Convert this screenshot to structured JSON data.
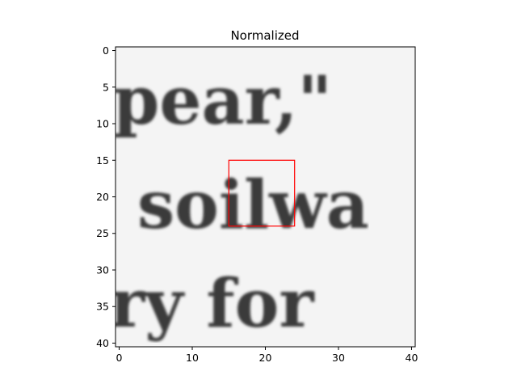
{
  "chart_data": {
    "type": "heatmap",
    "title": "Normalized",
    "xlabel": "",
    "ylabel": "",
    "xlim": [
      -0.5,
      40.5
    ],
    "ylim": [
      40.5,
      -0.5
    ],
    "x_ticks": [
      0,
      10,
      20,
      30,
      40
    ],
    "y_ticks": [
      0,
      5,
      10,
      15,
      20,
      25,
      30,
      35,
      40
    ],
    "colormap": "gray_r",
    "image_text_lines": [
      {
        "text": "pear,\"",
        "row_center": 7
      },
      {
        "text": "soilwa",
        "row_center": 21
      },
      {
        "text": "ry for",
        "row_center": 36
      }
    ],
    "highlight_box": {
      "x0": 15,
      "y0": 15,
      "x1": 24,
      "y1": 24,
      "color": "#ff0000"
    },
    "grid": false,
    "legend": "none"
  }
}
